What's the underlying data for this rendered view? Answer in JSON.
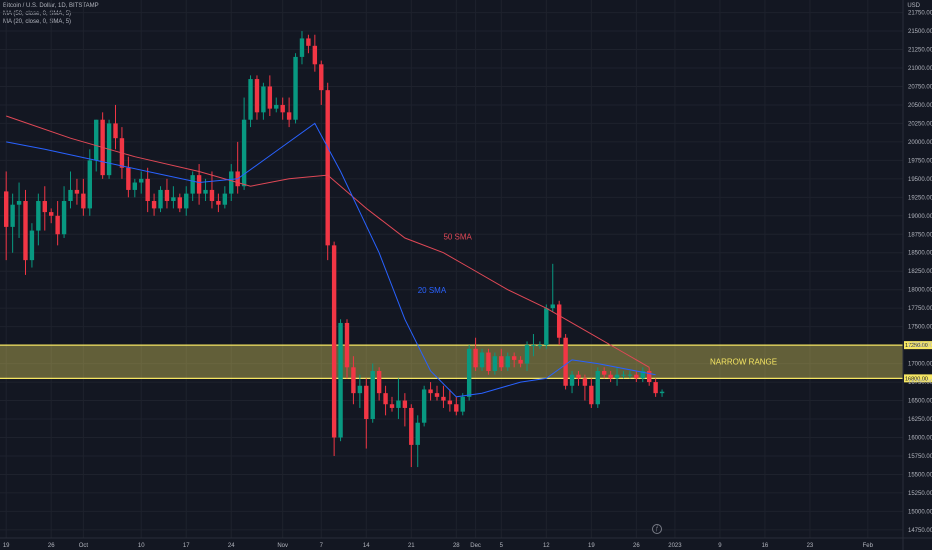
{
  "header": {
    "symbol": "Bitcoin / U.S. Dollar, 1D, BITSTAMP",
    "ma50": "MA (50, close, 0, SMA, 5)",
    "ma20": "MA (20, close, 0, SMA, 5)"
  },
  "currency": "USD",
  "watermark_icon": "tradingview-logo-icon",
  "chart_data": {
    "type": "candlestick",
    "y_ticks": [
      14750,
      15000,
      15250,
      15500,
      15750,
      16000,
      16250,
      16500,
      16750,
      17000,
      17250,
      17500,
      17750,
      18000,
      18250,
      18500,
      18750,
      19000,
      19250,
      19500,
      19750,
      20000,
      20250,
      20500,
      20750,
      21000,
      21250,
      21500,
      21750
    ],
    "ylim": [
      14640,
      21920
    ],
    "x_ticks": [
      {
        "label": "19",
        "day": 0
      },
      {
        "label": "26",
        "day": 7
      },
      {
        "label": "Oct",
        "day": 12
      },
      {
        "label": "10",
        "day": 21
      },
      {
        "label": "17",
        "day": 28
      },
      {
        "label": "24",
        "day": 35
      },
      {
        "label": "Nov",
        "day": 43
      },
      {
        "label": "7",
        "day": 49
      },
      {
        "label": "14",
        "day": 56
      },
      {
        "label": "21",
        "day": 63
      },
      {
        "label": "28",
        "day": 70
      },
      {
        "label": "Dec",
        "day": 73
      },
      {
        "label": "5",
        "day": 77
      },
      {
        "label": "12",
        "day": 84
      },
      {
        "label": "19",
        "day": 91
      },
      {
        "label": "26",
        "day": 98
      },
      {
        "label": "2023",
        "day": 104
      },
      {
        "label": "9",
        "day": 111
      },
      {
        "label": "16",
        "day": 118
      },
      {
        "label": "23",
        "day": 125
      },
      {
        "label": "Feb",
        "day": 134
      }
    ],
    "candles": [
      [
        19330,
        19600,
        18400,
        18850
      ],
      [
        18850,
        19300,
        18500,
        19150
      ],
      [
        19150,
        19450,
        18700,
        19200
      ],
      [
        19200,
        19350,
        18200,
        18400
      ],
      [
        18400,
        18900,
        18300,
        18800
      ],
      [
        18800,
        19300,
        18600,
        19200
      ],
      [
        19200,
        19400,
        18800,
        19050
      ],
      [
        19050,
        19100,
        18900,
        19000
      ],
      [
        19000,
        19200,
        18600,
        18750
      ],
      [
        18750,
        19400,
        18700,
        19200
      ],
      [
        19200,
        19600,
        19100,
        19350
      ],
      [
        19350,
        19500,
        19150,
        19300
      ],
      [
        19300,
        19500,
        19000,
        19100
      ],
      [
        19100,
        19900,
        19000,
        19750
      ],
      [
        19750,
        20300,
        19600,
        20300
      ],
      [
        20300,
        20400,
        19500,
        19550
      ],
      [
        19550,
        20300,
        19500,
        20250
      ],
      [
        20250,
        20500,
        19900,
        20050
      ],
      [
        20050,
        20200,
        19500,
        19650
      ],
      [
        19650,
        19800,
        19250,
        19350
      ],
      [
        19350,
        19500,
        19250,
        19450
      ],
      [
        19450,
        19600,
        19300,
        19500
      ],
      [
        19500,
        19650,
        19050,
        19200
      ],
      [
        19200,
        19300,
        19000,
        19100
      ],
      [
        19100,
        19400,
        19050,
        19350
      ],
      [
        19350,
        19500,
        19100,
        19200
      ],
      [
        19200,
        19400,
        19100,
        19250
      ],
      [
        19250,
        19300,
        19050,
        19100
      ],
      [
        19100,
        19400,
        19000,
        19300
      ],
      [
        19300,
        19600,
        19200,
        19550
      ],
      [
        19550,
        19700,
        19150,
        19300
      ],
      [
        19300,
        19500,
        19200,
        19350
      ],
      [
        19350,
        19600,
        19100,
        19200
      ],
      [
        19200,
        19300,
        19050,
        19150
      ],
      [
        19150,
        19400,
        19100,
        19300
      ],
      [
        19300,
        19700,
        19200,
        19600
      ],
      [
        19600,
        20000,
        19300,
        19400
      ],
      [
        19400,
        20600,
        19350,
        20300
      ],
      [
        20300,
        20900,
        20200,
        20850
      ],
      [
        20850,
        20900,
        20300,
        20400
      ],
      [
        20400,
        20800,
        20300,
        20750
      ],
      [
        20750,
        20900,
        20350,
        20450
      ],
      [
        20450,
        20600,
        20400,
        20500
      ],
      [
        20500,
        20600,
        20300,
        20400
      ],
      [
        20400,
        20600,
        20200,
        20300
      ],
      [
        20300,
        21200,
        20250,
        21150
      ],
      [
        21150,
        21500,
        21050,
        21400
      ],
      [
        21400,
        21450,
        21200,
        21300
      ],
      [
        21300,
        21450,
        20950,
        21050
      ],
      [
        21050,
        21100,
        20500,
        20700
      ],
      [
        20700,
        20800,
        18400,
        18600
      ],
      [
        18600,
        18650,
        15750,
        16000
      ],
      [
        16000,
        17600,
        15950,
        17550
      ],
      [
        17550,
        17600,
        16800,
        16950
      ],
      [
        16950,
        17100,
        16450,
        16600
      ],
      [
        16600,
        16850,
        16400,
        16700
      ],
      [
        16700,
        16800,
        15850,
        16250
      ],
      [
        16250,
        17000,
        16200,
        16900
      ],
      [
        16900,
        16950,
        16500,
        16600
      ],
      [
        16600,
        16700,
        16300,
        16450
      ],
      [
        16450,
        16550,
        16350,
        16400
      ],
      [
        16400,
        16800,
        16250,
        16500
      ],
      [
        16500,
        16600,
        16150,
        16400
      ],
      [
        16400,
        16450,
        15600,
        15900
      ],
      [
        15900,
        16300,
        15600,
        16200
      ],
      [
        16200,
        16700,
        16150,
        16650
      ],
      [
        16650,
        16750,
        16500,
        16600
      ],
      [
        16600,
        16700,
        16500,
        16550
      ],
      [
        16550,
        16700,
        16400,
        16500
      ],
      [
        16500,
        16650,
        16350,
        16450
      ],
      [
        16450,
        16550,
        16300,
        16350
      ],
      [
        16350,
        16600,
        16300,
        16550
      ],
      [
        16550,
        17250,
        16500,
        17200
      ],
      [
        17200,
        17350,
        16900,
        16950
      ],
      [
        16950,
        17200,
        16900,
        17150
      ],
      [
        17150,
        17200,
        16850,
        16900
      ],
      [
        16900,
        17150,
        16850,
        17100
      ],
      [
        17100,
        17200,
        16900,
        16950
      ],
      [
        16950,
        17150,
        16900,
        17100
      ],
      [
        17100,
        17150,
        16950,
        17050
      ],
      [
        17050,
        17100,
        16950,
        17000
      ],
      [
        17000,
        17300,
        16900,
        17250
      ],
      [
        17250,
        17400,
        17100,
        17250
      ],
      [
        17250,
        17300,
        17200,
        17250
      ],
      [
        17250,
        17800,
        17200,
        17750
      ],
      [
        17750,
        18350,
        17700,
        17800
      ],
      [
        17800,
        17850,
        17250,
        17350
      ],
      [
        17350,
        17400,
        16650,
        16700
      ],
      [
        16700,
        16900,
        16600,
        16850
      ],
      [
        16850,
        16900,
        16700,
        16800
      ],
      [
        16800,
        16850,
        16500,
        16700
      ],
      [
        16700,
        16800,
        16400,
        16450
      ],
      [
        16450,
        16950,
        16400,
        16900
      ],
      [
        16900,
        16950,
        16800,
        16850
      ],
      [
        16850,
        16900,
        16750,
        16800
      ],
      [
        16800,
        16950,
        16700,
        16850
      ],
      [
        16850,
        16900,
        16800,
        16850
      ],
      [
        16850,
        16900,
        16800,
        16850
      ],
      [
        16850,
        16900,
        16750,
        16800
      ],
      [
        16800,
        16950,
        16750,
        16900
      ],
      [
        16900,
        16950,
        16700,
        16750
      ],
      [
        16750,
        16800,
        16550,
        16600
      ],
      [
        16600,
        16650,
        16550,
        16620
      ]
    ],
    "sma50": [
      [
        0,
        20350
      ],
      [
        10,
        20050
      ],
      [
        20,
        19800
      ],
      [
        30,
        19600
      ],
      [
        38,
        19400
      ],
      [
        44,
        19500
      ],
      [
        50,
        19550
      ],
      [
        56,
        19100
      ],
      [
        62,
        18700
      ],
      [
        68,
        18500
      ],
      [
        72,
        18300
      ],
      [
        78,
        18000
      ],
      [
        84,
        17750
      ],
      [
        90,
        17450
      ],
      [
        96,
        17150
      ],
      [
        100,
        16950
      ]
    ],
    "sma20": [
      [
        0,
        20000
      ],
      [
        6,
        19900
      ],
      [
        14,
        19750
      ],
      [
        22,
        19600
      ],
      [
        30,
        19450
      ],
      [
        36,
        19500
      ],
      [
        40,
        19750
      ],
      [
        44,
        20000
      ],
      [
        48,
        20250
      ],
      [
        52,
        19600
      ],
      [
        58,
        18500
      ],
      [
        62,
        17600
      ],
      [
        66,
        16900
      ],
      [
        70,
        16550
      ],
      [
        74,
        16600
      ],
      [
        80,
        16750
      ],
      [
        84,
        16800
      ],
      [
        88,
        17050
      ],
      [
        92,
        17000
      ],
      [
        98,
        16900
      ],
      [
        101,
        16850
      ]
    ],
    "annotations": {
      "sma50_label": "50 SMA",
      "sma20_label": "20 SMA",
      "range_label": "NARROW RANGE"
    },
    "range_zone": {
      "low": 16800,
      "high": 17250,
      "low_label": "16800.00",
      "high_label": "17250.00"
    },
    "colors": {
      "up": "#089981",
      "down": "#f23645",
      "sma50": "#e04856",
      "sma20": "#2962ff",
      "zone": "#f5e663",
      "background": "#131722"
    }
  }
}
